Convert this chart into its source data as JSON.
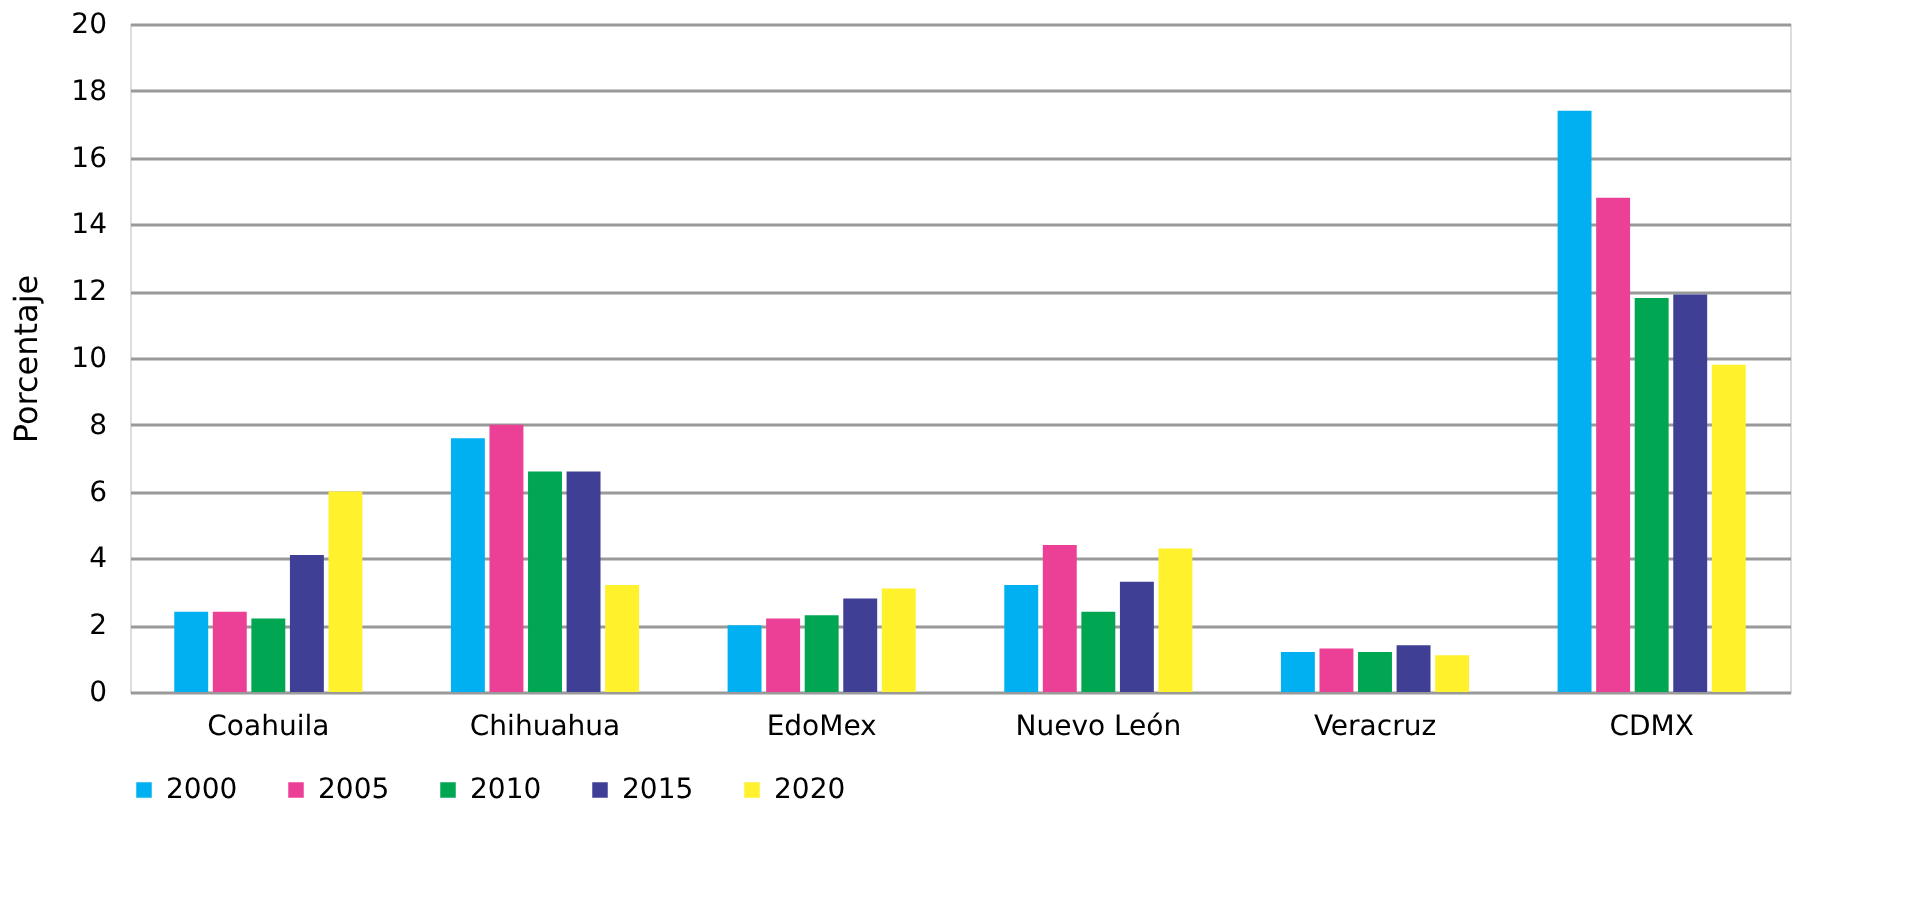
{
  "chart_data": {
    "type": "bar",
    "ylabel": "Porcentaje",
    "categories": [
      "Coahuila",
      "Chihuahua",
      "EdoMex",
      "Nuevo León",
      "Veracruz",
      "CDMX"
    ],
    "series": [
      {
        "name": "2000",
        "color": "#00b0f0",
        "values": [
          2.4,
          7.6,
          2.0,
          3.2,
          1.2,
          17.4
        ]
      },
      {
        "name": "2005",
        "color": "#ec3f96",
        "values": [
          2.4,
          8.0,
          2.2,
          4.4,
          1.3,
          14.8
        ]
      },
      {
        "name": "2010",
        "color": "#00a651",
        "values": [
          2.2,
          6.6,
          2.3,
          2.4,
          1.2,
          11.8
        ]
      },
      {
        "name": "2015",
        "color": "#3f3f95",
        "values": [
          4.1,
          6.6,
          2.8,
          3.3,
          1.4,
          11.9
        ]
      },
      {
        "name": "2020",
        "color": "#fff22d",
        "values": [
          6.0,
          3.2,
          3.1,
          4.3,
          1.1,
          9.8
        ]
      }
    ],
    "ylim": [
      0,
      20
    ],
    "yticks": [
      0,
      2,
      4,
      6,
      8,
      10,
      12,
      14,
      16,
      18,
      20
    ],
    "grid": "y",
    "legend": "bottom"
  }
}
